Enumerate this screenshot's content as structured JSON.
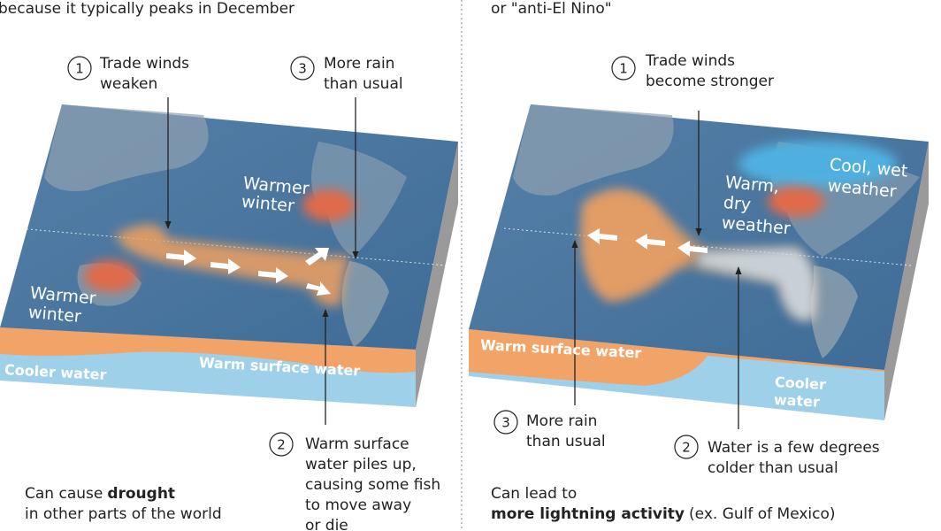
{
  "left": {
    "heading": "because it typically peaks in December",
    "callouts": [
      {
        "number": "1",
        "lines": [
          "Trade winds",
          "weaken"
        ]
      },
      {
        "number": "3",
        "lines": [
          "More rain",
          "than usual"
        ]
      },
      {
        "number": "2",
        "lines": [
          "Warm surface",
          "water piles up,",
          "causing some fish",
          "to move away",
          "or die"
        ]
      }
    ],
    "map_labels": [
      {
        "lines": [
          "Warmer",
          "winter"
        ]
      },
      {
        "lines": [
          "Warmer",
          "winter"
        ]
      }
    ],
    "layers": {
      "cool": [
        "Cooler water"
      ],
      "warm": [
        "Warm surface water"
      ]
    },
    "note": {
      "lead": "Can cause",
      "bold": "drought",
      "line2": "in other parts of the world"
    }
  },
  "right": {
    "heading": "or \"anti-El Nino\"",
    "callouts": [
      {
        "number": "1",
        "lines": [
          "Trade winds",
          "become stronger"
        ]
      },
      {
        "number": "3",
        "lines": [
          "More rain",
          "than usual"
        ]
      },
      {
        "number": "2",
        "lines": [
          "Water is a few degrees",
          "colder than usual"
        ]
      }
    ],
    "map_labels": [
      {
        "lines": [
          "Cool, wet",
          "weather"
        ]
      },
      {
        "lines": [
          "Warm,",
          "dry",
          "weather"
        ]
      }
    ],
    "layers": {
      "warm": [
        "Warm surface water"
      ],
      "cool": [
        "Cooler",
        "water"
      ]
    },
    "note": {
      "line1": "Can lead to",
      "bold": "more lightning activity",
      "rest": "(ex. Gulf of Mexico)"
    }
  }
}
